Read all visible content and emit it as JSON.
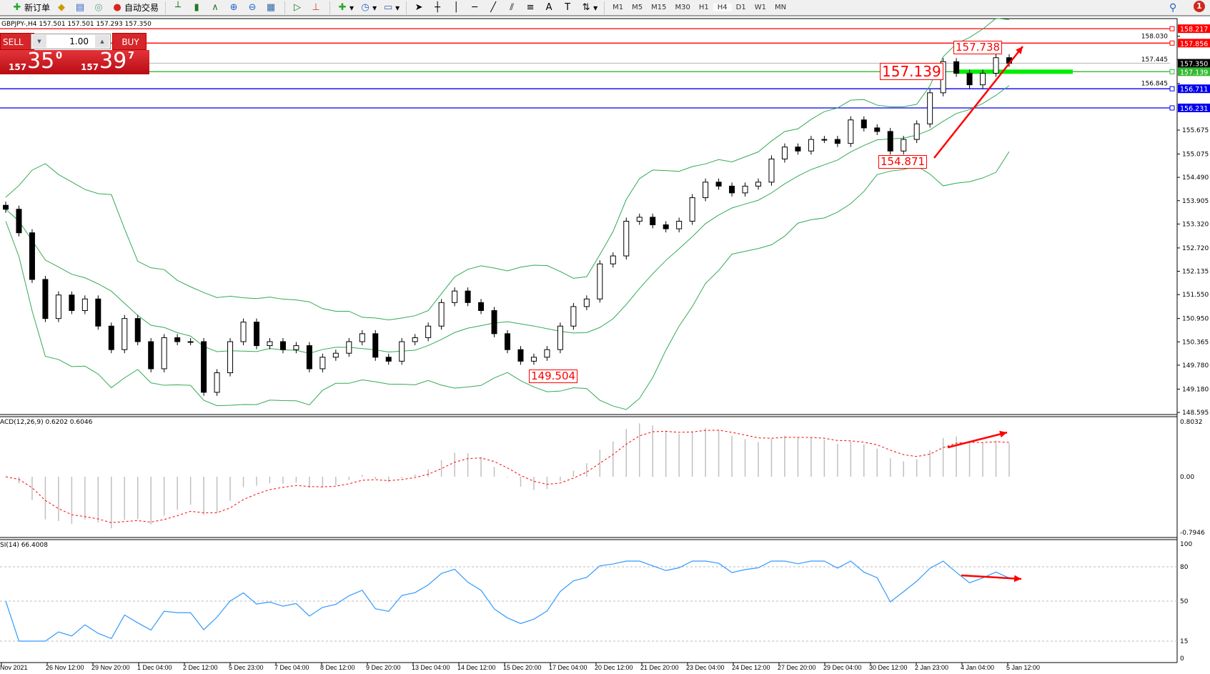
{
  "toolbar": {
    "new_order": "新订单",
    "auto_trading": "自动交易",
    "timeframes": [
      "M1",
      "M5",
      "M15",
      "M30",
      "H1",
      "H4",
      "D1",
      "W1",
      "MN"
    ],
    "active_timeframe": "H4",
    "notifications": "1"
  },
  "header": "GBPJPY-,H4  157.501 157.501 157.293 157.350",
  "trade_panel": {
    "sell": "SELL",
    "buy": "BUY",
    "lot": "1.00",
    "sell_small": "157",
    "sell_big": "35",
    "sell_pip": "0",
    "buy_small": "157",
    "buy_big": "39",
    "buy_pip": "7"
  },
  "price_axis": {
    "ticks": [
      "158.030",
      "157.445",
      "156.845",
      "155.675",
      "155.075",
      "154.490",
      "153.905",
      "153.320",
      "152.720",
      "152.135",
      "151.550",
      "150.950",
      "150.365",
      "149.780",
      "149.180",
      "148.595"
    ],
    "min": 148.595,
    "max": 158.217
  },
  "hlines": [
    {
      "price": 158.217,
      "label": "158.217",
      "color": "#ff0000"
    },
    {
      "price": 157.856,
      "label": "157.856",
      "color": "#ff0000"
    },
    {
      "price": 157.35,
      "label": "157.350",
      "color": "#000000",
      "line": "#c0c0c0"
    },
    {
      "price": 157.139,
      "label": "157.139",
      "color": "#33bb33"
    },
    {
      "price": 156.711,
      "label": "156.711",
      "color": "#0000ee"
    },
    {
      "price": 156.231,
      "label": "156.231",
      "color": "#0000ee"
    }
  ],
  "annotations": [
    "157.738",
    "157.139",
    "154.871",
    "149.504"
  ],
  "macd": {
    "label": "ACD(12,26,9) 0.6202 0.6046",
    "max": "0.8032",
    "zero": "0.00",
    "min": "-0.7946"
  },
  "rsi": {
    "label": "SI(14) 66.4008",
    "levels": [
      "100",
      "80",
      "50",
      "15",
      "0"
    ]
  },
  "time_axis": [
    "Nov 2021",
    "26 Nov 12:00",
    "29 Nov 20:00",
    "1 Dec 04:00",
    "2 Dec 12:00",
    "5 Dec 23:00",
    "7 Dec 04:00",
    "8 Dec 12:00",
    "9 Dec 20:00",
    "13 Dec 04:00",
    "14 Dec 12:00",
    "15 Dec 20:00",
    "17 Dec 04:00",
    "20 Dec 12:00",
    "21 Dec 20:00",
    "23 Dec 04:00",
    "24 Dec 12:00",
    "27 Dec 20:00",
    "29 Dec 04:00",
    "30 Dec 12:00",
    "2 Jan 23:00",
    "4 Jan 04:00",
    "5 Jan 12:00"
  ],
  "colors": {
    "bands": "#33aa55",
    "macd_signal": "#ff0000",
    "macd_hist": "#c0c0c0",
    "rsi": "#3399ff",
    "arrows": "#ff0000"
  },
  "chart_data": {
    "type": "candlestick",
    "symbol": "GBPJPY-",
    "timeframe": "H4",
    "ylim": [
      148.595,
      158.217
    ],
    "close": [
      153.69,
      153.1,
      151.93,
      150.95,
      151.54,
      151.15,
      151.44,
      150.76,
      150.17,
      150.95,
      150.37,
      149.69,
      150.47,
      150.37,
      150.37,
      149.1,
      149.59,
      150.37,
      150.86,
      150.27,
      150.37,
      150.17,
      150.27,
      149.69,
      149.98,
      150.08,
      150.37,
      150.57,
      149.98,
      149.88,
      150.37,
      150.47,
      150.76,
      151.35,
      151.64,
      151.35,
      151.15,
      150.57,
      150.17,
      149.88,
      149.98,
      150.17,
      150.76,
      151.25,
      151.44,
      152.32,
      152.52,
      153.39,
      153.49,
      153.3,
      153.2,
      153.39,
      153.98,
      154.37,
      154.27,
      154.1,
      154.27,
      154.37,
      154.95,
      155.25,
      155.15,
      155.44,
      155.44,
      155.34,
      155.93,
      155.73,
      155.64,
      155.15,
      155.44,
      155.83,
      156.61,
      157.39,
      157.1,
      156.81,
      157.1,
      157.49,
      157.35
    ]
  }
}
